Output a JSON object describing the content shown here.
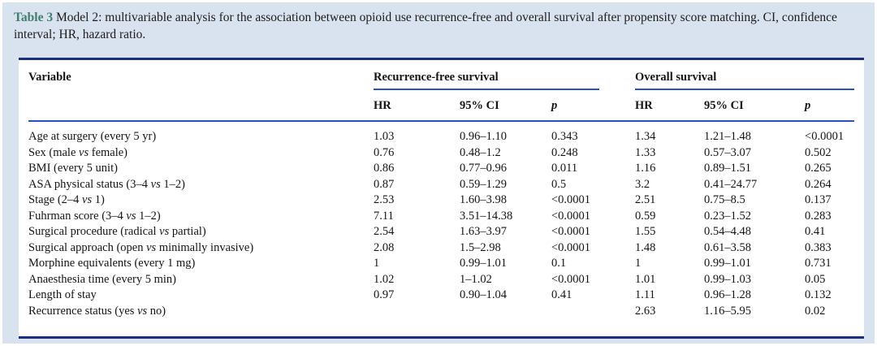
{
  "caption": {
    "label": "Table 3",
    "text": " Model 2: multivariable analysis for the association between opioid use recurrence-free and overall survival after propensity score matching. CI, confidence interval; HR, hazard ratio."
  },
  "table": {
    "variable_header": "Variable",
    "groups": [
      {
        "label": "Recurrence-free survival"
      },
      {
        "label": "Overall survival"
      }
    ],
    "sub_headers": [
      "HR",
      "95% CI",
      "p",
      "HR",
      "95% CI",
      "p"
    ],
    "rows": [
      {
        "variable": "Age at surgery (every 5 yr)",
        "values": [
          "1.03",
          "0.96–1.10",
          "0.343",
          "1.34",
          "1.21–1.48",
          "<0.0001"
        ]
      },
      {
        "variable": "Sex (male vs female)",
        "values": [
          "0.76",
          "0.48–1.2",
          "0.248",
          "1.33",
          "0.57–3.07",
          "0.502"
        ]
      },
      {
        "variable": "BMI (every 5 unit)",
        "values": [
          "0.86",
          "0.77–0.96",
          "0.011",
          "1.16",
          "0.89–1.51",
          "0.265"
        ]
      },
      {
        "variable": "ASA physical status (3–4 vs 1–2)",
        "values": [
          "0.87",
          "0.59–1.29",
          "0.5",
          "3.2",
          "0.41–24.77",
          "0.264"
        ]
      },
      {
        "variable": "Stage (2–4 vs 1)",
        "values": [
          "2.53",
          "1.60–3.98",
          "<0.0001",
          "2.51",
          "0.75–8.5",
          "0.137"
        ]
      },
      {
        "variable": "Fuhrman score (3–4 vs 1–2)",
        "values": [
          "7.11",
          "3.51–14.38",
          "<0.0001",
          "0.59",
          "0.23–1.52",
          "0.283"
        ]
      },
      {
        "variable": "Surgical procedure (radical vs partial)",
        "values": [
          "2.54",
          "1.63–3.97",
          "<0.0001",
          "1.55",
          "0.54–4.48",
          "0.41"
        ]
      },
      {
        "variable": "Surgical approach (open vs minimally invasive)",
        "values": [
          "2.08",
          "1.5–2.98",
          "<0.0001",
          "1.48",
          "0.61–3.58",
          "0.383"
        ]
      },
      {
        "variable": "Morphine equivalents (every 1 mg)",
        "values": [
          "1",
          "0.99–1.01",
          "0.1",
          "1",
          "0.99–1.01",
          "0.731"
        ]
      },
      {
        "variable": "Anaesthesia time (every 5 min)",
        "values": [
          "1.02",
          "1–1.02",
          "<0.0001",
          "1.01",
          "0.99–1.03",
          "0.05"
        ]
      },
      {
        "variable": "Length of stay",
        "values": [
          "0.97",
          "0.90–1.04",
          "0.41",
          "1.11",
          "0.96–1.28",
          "0.132"
        ]
      },
      {
        "variable": "Recurrence status (yes vs no)",
        "values": [
          "",
          "",
          "",
          "2.63",
          "1.16–5.95",
          "0.02"
        ]
      }
    ]
  },
  "colors": {
    "page_background": "#d9e3f0",
    "rule_navy": "#1b2d7e",
    "rule_blue": "#2d4fc4",
    "caption_label": "#3f7d6e"
  }
}
